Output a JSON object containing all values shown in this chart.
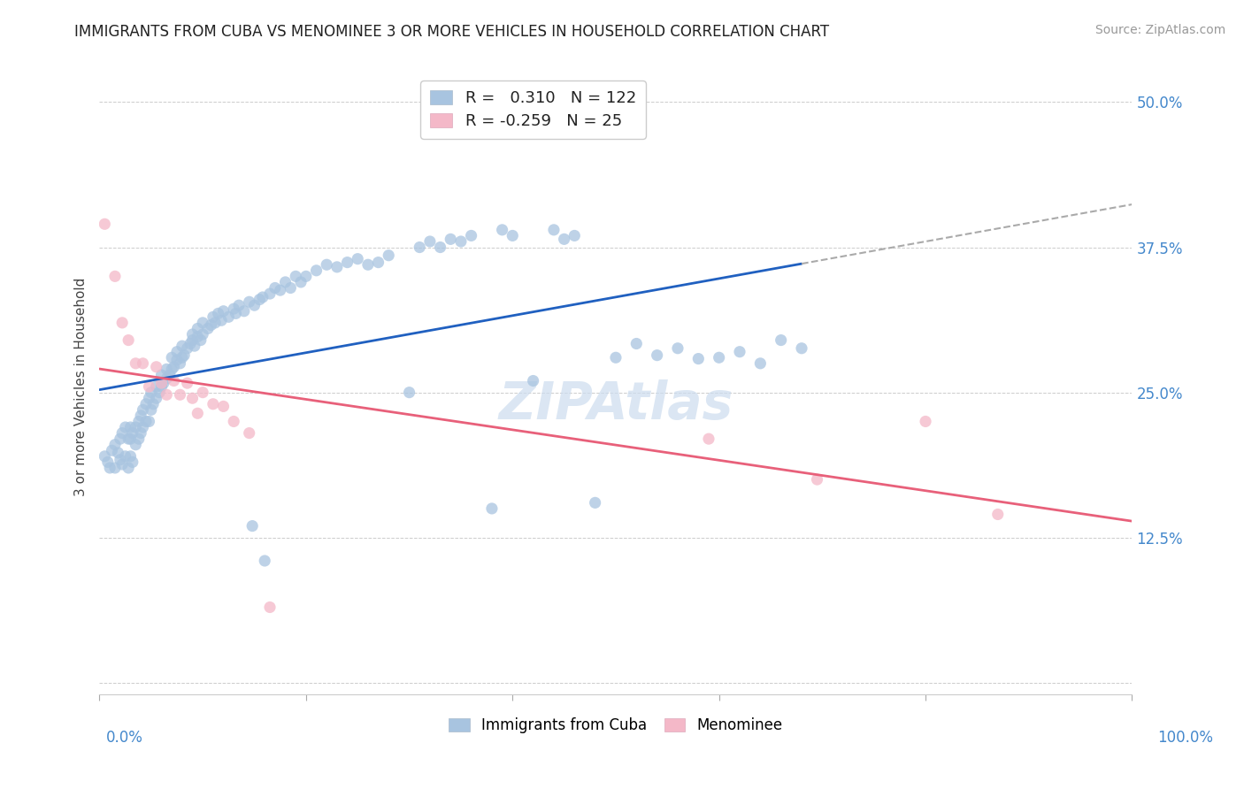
{
  "title": "IMMIGRANTS FROM CUBA VS MENOMINEE 3 OR MORE VEHICLES IN HOUSEHOLD CORRELATION CHART",
  "source": "Source: ZipAtlas.com",
  "ylabel": "3 or more Vehicles in Household",
  "ytick_vals": [
    0.0,
    0.125,
    0.25,
    0.375,
    0.5
  ],
  "ytick_labels": [
    "",
    "12.5%",
    "25.0%",
    "37.5%",
    "50.0%"
  ],
  "legend_labels": [
    "Immigrants from Cuba",
    "Menominee"
  ],
  "r_cuba": 0.31,
  "n_cuba": 122,
  "r_menominee": -0.259,
  "n_menominee": 25,
  "blue_scatter_color": "#a8c4e0",
  "pink_scatter_color": "#f4b8c8",
  "blue_line_color": "#2060c0",
  "pink_line_color": "#e8607a",
  "dash_line_color": "#aaaaaa",
  "watermark_color": "#ccdcee",
  "background_color": "#ffffff",
  "title_color": "#222222",
  "axis_label_color": "#4488cc",
  "grid_color": "#cccccc",
  "source_color": "#999999",
  "scatter_size": 90,
  "scatter_alpha": 0.75,
  "cuba_x": [
    0.005,
    0.008,
    0.01,
    0.012,
    0.015,
    0.015,
    0.018,
    0.02,
    0.02,
    0.022,
    0.022,
    0.025,
    0.025,
    0.028,
    0.028,
    0.03,
    0.03,
    0.03,
    0.032,
    0.032,
    0.035,
    0.035,
    0.038,
    0.038,
    0.04,
    0.04,
    0.042,
    0.042,
    0.045,
    0.045,
    0.048,
    0.048,
    0.05,
    0.05,
    0.052,
    0.055,
    0.055,
    0.058,
    0.06,
    0.06,
    0.062,
    0.065,
    0.065,
    0.068,
    0.07,
    0.07,
    0.072,
    0.075,
    0.075,
    0.078,
    0.08,
    0.08,
    0.082,
    0.085,
    0.088,
    0.09,
    0.09,
    0.092,
    0.095,
    0.095,
    0.098,
    0.1,
    0.1,
    0.105,
    0.108,
    0.11,
    0.112,
    0.115,
    0.118,
    0.12,
    0.125,
    0.13,
    0.132,
    0.135,
    0.14,
    0.145,
    0.148,
    0.15,
    0.155,
    0.158,
    0.16,
    0.165,
    0.17,
    0.175,
    0.18,
    0.185,
    0.19,
    0.195,
    0.2,
    0.21,
    0.22,
    0.23,
    0.24,
    0.25,
    0.26,
    0.27,
    0.28,
    0.3,
    0.31,
    0.32,
    0.33,
    0.34,
    0.35,
    0.36,
    0.38,
    0.39,
    0.4,
    0.42,
    0.44,
    0.45,
    0.46,
    0.48,
    0.5,
    0.52,
    0.54,
    0.56,
    0.58,
    0.6,
    0.62,
    0.64,
    0.66,
    0.68
  ],
  "cuba_y": [
    0.195,
    0.19,
    0.185,
    0.2,
    0.185,
    0.205,
    0.198,
    0.192,
    0.21,
    0.188,
    0.215,
    0.195,
    0.22,
    0.185,
    0.21,
    0.195,
    0.21,
    0.22,
    0.19,
    0.215,
    0.205,
    0.22,
    0.21,
    0.225,
    0.215,
    0.23,
    0.22,
    0.235,
    0.225,
    0.24,
    0.225,
    0.245,
    0.235,
    0.25,
    0.24,
    0.245,
    0.255,
    0.25,
    0.255,
    0.265,
    0.258,
    0.262,
    0.27,
    0.265,
    0.27,
    0.28,
    0.272,
    0.278,
    0.285,
    0.275,
    0.28,
    0.29,
    0.282,
    0.288,
    0.292,
    0.295,
    0.3,
    0.29,
    0.298,
    0.305,
    0.295,
    0.3,
    0.31,
    0.305,
    0.308,
    0.315,
    0.31,
    0.318,
    0.312,
    0.32,
    0.315,
    0.322,
    0.318,
    0.325,
    0.32,
    0.328,
    0.135,
    0.325,
    0.33,
    0.332,
    0.105,
    0.335,
    0.34,
    0.338,
    0.345,
    0.34,
    0.35,
    0.345,
    0.35,
    0.355,
    0.36,
    0.358,
    0.362,
    0.365,
    0.36,
    0.362,
    0.368,
    0.25,
    0.375,
    0.38,
    0.375,
    0.382,
    0.38,
    0.385,
    0.15,
    0.39,
    0.385,
    0.26,
    0.39,
    0.382,
    0.385,
    0.155,
    0.28,
    0.292,
    0.282,
    0.288,
    0.279,
    0.28,
    0.285,
    0.275,
    0.295,
    0.288
  ],
  "menominee_x": [
    0.005,
    0.015,
    0.022,
    0.028,
    0.035,
    0.042,
    0.048,
    0.055,
    0.06,
    0.065,
    0.072,
    0.078,
    0.085,
    0.09,
    0.095,
    0.1,
    0.11,
    0.12,
    0.13,
    0.145,
    0.165,
    0.59,
    0.695,
    0.8,
    0.87
  ],
  "menominee_y": [
    0.395,
    0.35,
    0.31,
    0.295,
    0.275,
    0.275,
    0.255,
    0.272,
    0.258,
    0.248,
    0.26,
    0.248,
    0.258,
    0.245,
    0.232,
    0.25,
    0.24,
    0.238,
    0.225,
    0.215,
    0.065,
    0.21,
    0.175,
    0.225,
    0.145
  ]
}
